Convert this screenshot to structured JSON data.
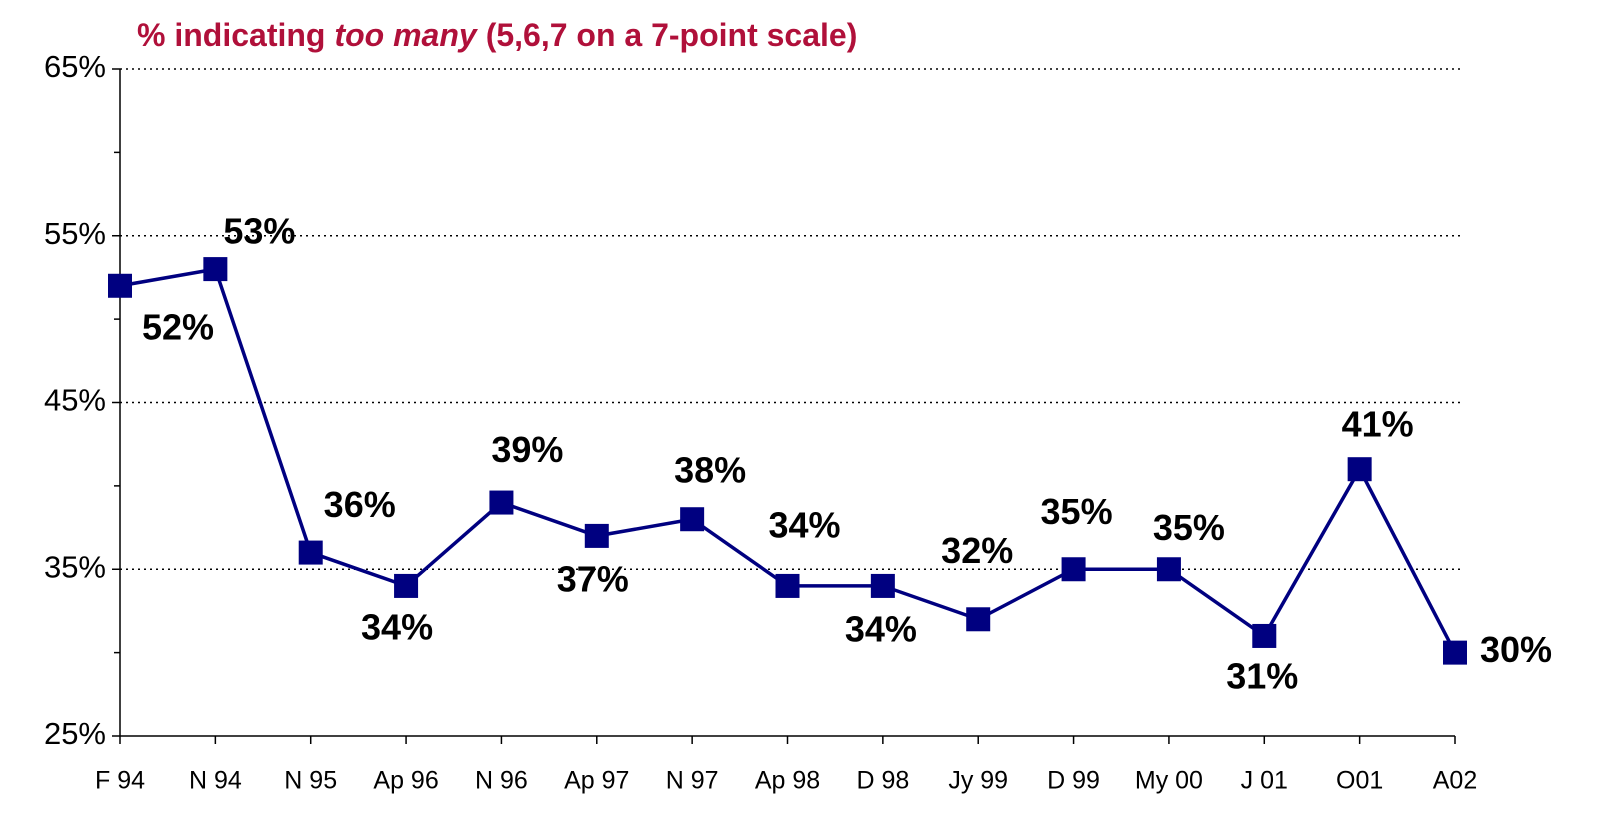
{
  "chart_data": {
    "type": "line",
    "title": {
      "prefix": "% indicating",
      "emphasis": "too many",
      "suffix": "(5,6,7 on a 7-point scale)"
    },
    "categories": [
      "F 94",
      "N 94",
      "N 95",
      "Ap 96",
      "N 96",
      "Ap 97",
      "N 97",
      "Ap 98",
      "D 98",
      "Jy 99",
      "D 99",
      "My 00",
      "J 01",
      "O01",
      "A02"
    ],
    "series": [
      {
        "color": "#000080",
        "values": [
          52,
          53,
          36,
          34,
          39,
          37,
          38,
          34,
          34,
          32,
          35,
          35,
          31,
          41,
          30
        ],
        "value_labels": [
          "52%",
          "53%",
          "36%",
          "34%",
          "39%",
          "37%",
          "38%",
          "34%",
          "34%",
          "32%",
          "35%",
          "35%",
          "31%",
          "41%",
          "30%"
        ]
      }
    ],
    "ylim": [
      25,
      65
    ],
    "yticks": [
      {
        "value": 25,
        "label": "25%"
      },
      {
        "value": 35,
        "label": "35%"
      },
      {
        "value": 45,
        "label": "45%"
      },
      {
        "value": 55,
        "label": "55%"
      },
      {
        "value": 65,
        "label": "65%"
      }
    ],
    "minor_yticks": [
      30,
      40,
      50,
      60
    ],
    "grid": true
  }
}
